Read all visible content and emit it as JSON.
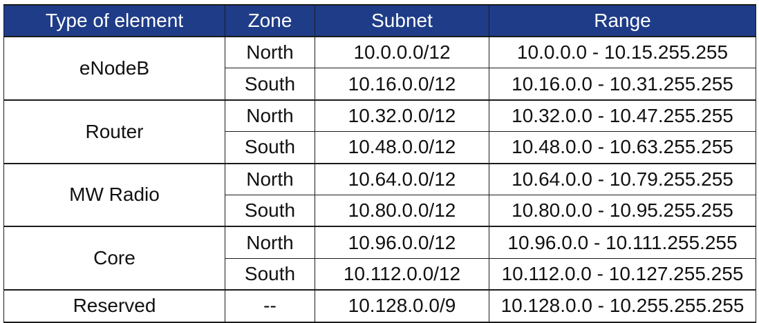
{
  "table": {
    "headers": [
      "Type of element",
      "Zone",
      "Subnet",
      "Range"
    ],
    "groups": [
      {
        "type": "eNodeB",
        "rows": [
          {
            "zone": "North",
            "subnet": "10.0.0.0/12",
            "range": "10.0.0.0 - 10.15.255.255"
          },
          {
            "zone": "South",
            "subnet": "10.16.0.0/12",
            "range": "10.16.0.0 - 10.31.255.255"
          }
        ]
      },
      {
        "type": "Router",
        "rows": [
          {
            "zone": "North",
            "subnet": "10.32.0.0/12",
            "range": "10.32.0.0 - 10.47.255.255"
          },
          {
            "zone": "South",
            "subnet": "10.48.0.0/12",
            "range": "10.48.0.0 - 10.63.255.255"
          }
        ]
      },
      {
        "type": "MW Radio",
        "rows": [
          {
            "zone": "North",
            "subnet": "10.64.0.0/12",
            "range": "10.64.0.0 - 10.79.255.255"
          },
          {
            "zone": "South",
            "subnet": "10.80.0.0/12",
            "range": "10.80.0.0 - 10.95.255.255"
          }
        ]
      },
      {
        "type": "Core",
        "rows": [
          {
            "zone": "North",
            "subnet": "10.96.0.0/12",
            "range": "10.96.0.0 - 10.111.255.255"
          },
          {
            "zone": "South",
            "subnet": "10.112.0.0/12",
            "range": "10.112.0.0 - 10.127.255.255"
          }
        ]
      },
      {
        "type": "Reserved",
        "rows": [
          {
            "zone": "--",
            "subnet": "10.128.0.0/9",
            "range": "10.128.0.0 - 10.255.255.255"
          }
        ]
      }
    ],
    "header_color": "#1f3c88",
    "header_text_color": "#ffffff"
  }
}
